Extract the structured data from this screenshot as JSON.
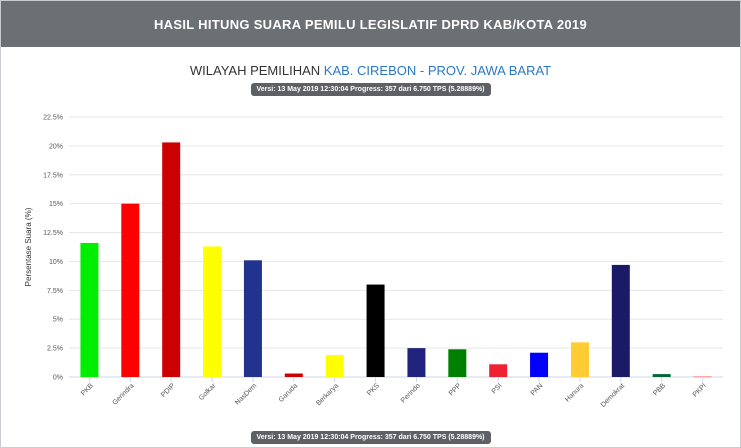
{
  "header": {
    "title": "HASIL HITUNG SUARA PEMILU LEGISLATIF DPRD KAB/KOTA 2019"
  },
  "subtitle": {
    "prefix": "WILAYAH PEMILIHAN",
    "region": "KAB. CIREBON - PROV. JAWA BARAT"
  },
  "version_text": "Versi: 13 May 2019 12:30:04 Progress: 357 dari 6.750 TPS (5.28889%)",
  "version_text_bottom": "Versi: 13 May 2019 12:30:04 Progress: 357 dari 6.750 TPS (5.28889%)",
  "colors": {
    "header_bg": "#6b7075",
    "badge_bg": "#5d6166",
    "region_link": "#2a78c6"
  },
  "chart_data": {
    "type": "bar",
    "ylabel": "Persentase Suara (%)",
    "ylim": [
      0,
      22.5
    ],
    "yticks": [
      "0%",
      "2.5%",
      "5%",
      "7.5%",
      "10%",
      "12.5%",
      "15%",
      "17.5%",
      "20%",
      "22.5%"
    ],
    "grid": true,
    "categories": [
      "PKB",
      "Gerindra",
      "PDIP",
      "Golkar",
      "NasDem",
      "Garuda",
      "Berkarya",
      "PKS",
      "Perindo",
      "PPP",
      "PSI",
      "PAN",
      "Hanura",
      "Demokrat",
      "PBB",
      "PKPI"
    ],
    "values": [
      11.6,
      15.0,
      20.3,
      11.3,
      10.1,
      0.3,
      1.9,
      8.0,
      2.5,
      2.4,
      1.1,
      2.1,
      3.0,
      9.7,
      0.25,
      0.05
    ],
    "colors": [
      "#00ee00",
      "#ff0000",
      "#cc0000",
      "#ffff00",
      "#22338f",
      "#cc0000",
      "#ffff00",
      "#000000",
      "#22227f",
      "#008000",
      "#ee2233",
      "#0000ff",
      "#ffcc33",
      "#1a1a66",
      "#006633",
      "#ff6666"
    ]
  }
}
